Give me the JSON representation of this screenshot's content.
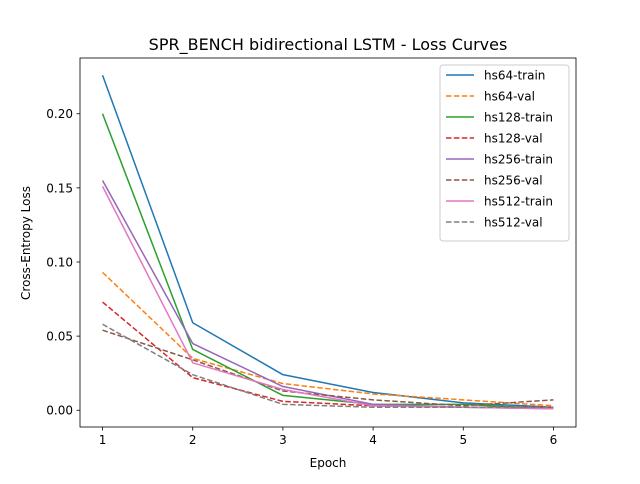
{
  "chart_data": {
    "type": "line",
    "title": "SPR_BENCH bidirectional LSTM - Loss Curves",
    "xlabel": "Epoch",
    "ylabel": "Cross-Entropy Loss",
    "x": [
      1,
      2,
      3,
      4,
      5,
      6
    ],
    "xlim": [
      0.75,
      6.25
    ],
    "ylim": [
      -0.0113,
      0.2376
    ],
    "xticks": [
      1,
      2,
      3,
      4,
      5,
      6
    ],
    "yticks": [
      0.0,
      0.05,
      0.1,
      0.15,
      0.2
    ],
    "ytick_labels": [
      "0.00",
      "0.05",
      "0.10",
      "0.15",
      "0.20"
    ],
    "grid": false,
    "legend_position": "upper right",
    "series": [
      {
        "name": "hs64-train",
        "color": "#1f77b4",
        "style": "solid",
        "values": [
          0.226,
          0.059,
          0.024,
          0.012,
          0.005,
          0.002
        ]
      },
      {
        "name": "hs64-val",
        "color": "#ff7f0e",
        "style": "dashed",
        "values": [
          0.093,
          0.035,
          0.018,
          0.011,
          0.007,
          0.003
        ]
      },
      {
        "name": "hs128-train",
        "color": "#2ca02c",
        "style": "solid",
        "values": [
          0.2,
          0.041,
          0.01,
          0.004,
          0.004,
          0.001
        ]
      },
      {
        "name": "hs128-val",
        "color": "#d62728",
        "style": "dashed",
        "values": [
          0.073,
          0.022,
          0.006,
          0.003,
          0.002,
          0.002
        ]
      },
      {
        "name": "hs256-train",
        "color": "#9467bd",
        "style": "solid",
        "values": [
          0.155,
          0.045,
          0.016,
          0.004,
          0.002,
          0.001
        ]
      },
      {
        "name": "hs256-val",
        "color": "#8c564b",
        "style": "dashed",
        "values": [
          0.054,
          0.034,
          0.013,
          0.007,
          0.003,
          0.007
        ]
      },
      {
        "name": "hs512-train",
        "color": "#e377c2",
        "style": "solid",
        "values": [
          0.151,
          0.032,
          0.014,
          0.003,
          0.002,
          0.001
        ]
      },
      {
        "name": "hs512-val",
        "color": "#7f7f7f",
        "style": "dashed",
        "values": [
          0.058,
          0.024,
          0.004,
          0.002,
          0.002,
          0.002
        ]
      }
    ]
  }
}
